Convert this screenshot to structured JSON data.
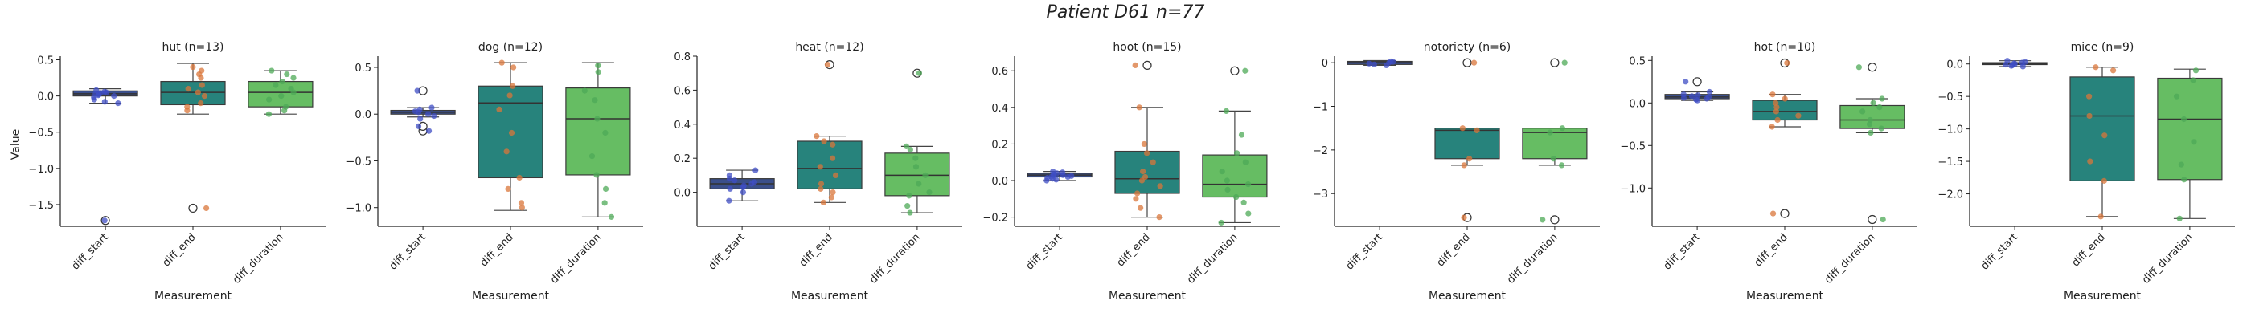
{
  "figure": {
    "title": "Patient D61 n=77",
    "ylabel": "Value",
    "xlabel": "Measurement"
  },
  "colors": {
    "box": [
      "#3b4f8a",
      "#27837c",
      "#66bd63"
    ],
    "points": [
      "#3f4ec4",
      "#d9763a",
      "#4daa57"
    ],
    "median": "#333333",
    "whisker": "#444444"
  },
  "chart_data": [
    {
      "type": "box",
      "title": "hut (n=13)",
      "categories": [
        "diff_start",
        "diff_end",
        "diff_duration"
      ],
      "ylim": [
        -1.8,
        0.55
      ],
      "yticks": [
        0.5,
        0.0,
        -0.5,
        -1.0,
        -1.5
      ],
      "boxes": [
        {
          "q1": 0.0,
          "median": 0.03,
          "q3": 0.07,
          "wlow": -0.1,
          "whigh": 0.1,
          "outliers": [
            -1.72
          ]
        },
        {
          "q1": -0.12,
          "median": 0.05,
          "q3": 0.2,
          "wlow": -0.25,
          "whigh": 0.45,
          "outliers": [
            -1.55
          ]
        },
        {
          "q1": -0.15,
          "median": 0.05,
          "q3": 0.2,
          "wlow": -0.25,
          "whigh": 0.35,
          "outliers": []
        }
      ],
      "points": [
        [
          0.08,
          0.06,
          0.04,
          0.02,
          0.0,
          -0.02,
          -0.05,
          -0.08,
          -0.1,
          0.05,
          0.03,
          0.01,
          -1.72
        ],
        [
          0.4,
          0.35,
          0.3,
          0.25,
          0.15,
          0.1,
          0.05,
          0.0,
          -0.1,
          -0.15,
          -0.2,
          -1.55
        ],
        [
          0.35,
          0.3,
          0.25,
          0.2,
          0.15,
          0.1,
          0.05,
          0.0,
          -0.05,
          -0.15,
          -0.2,
          -0.25
        ]
      ]
    },
    {
      "type": "box",
      "title": "dog (n=12)",
      "categories": [
        "diff_start",
        "diff_end",
        "diff_duration"
      ],
      "ylim": [
        -1.2,
        0.62
      ],
      "yticks": [
        0.5,
        0.0,
        -0.5,
        -1.0
      ],
      "boxes": [
        {
          "q1": 0.0,
          "median": 0.02,
          "q3": 0.04,
          "wlow": -0.03,
          "whigh": 0.07,
          "outliers": [
            0.25,
            -0.18,
            -0.13
          ]
        },
        {
          "q1": -0.68,
          "median": 0.12,
          "q3": 0.3,
          "wlow": -1.03,
          "whigh": 0.55,
          "outliers": []
        },
        {
          "q1": -0.65,
          "median": -0.05,
          "q3": 0.28,
          "wlow": -1.1,
          "whigh": 0.55,
          "outliers": []
        }
      ],
      "points": [
        [
          0.25,
          0.07,
          0.05,
          0.03,
          0.02,
          0.0,
          -0.02,
          -0.05,
          -0.13,
          -0.18
        ],
        [
          0.55,
          0.5,
          0.3,
          0.2,
          0.05,
          -0.2,
          -0.4,
          -0.68,
          -0.8,
          -0.95,
          -1.0
        ],
        [
          0.52,
          0.45,
          0.25,
          0.15,
          -0.05,
          -0.2,
          -0.45,
          -0.65,
          -0.8,
          -0.95,
          -1.1
        ]
      ]
    },
    {
      "type": "box",
      "title": "heat (n=12)",
      "categories": [
        "diff_start",
        "diff_end",
        "diff_duration"
      ],
      "ylim": [
        -0.2,
        0.8
      ],
      "yticks": [
        0.8,
        0.6,
        0.4,
        0.2,
        0.0
      ],
      "boxes": [
        {
          "q1": 0.02,
          "median": 0.05,
          "q3": 0.08,
          "wlow": -0.05,
          "whigh": 0.13,
          "outliers": []
        },
        {
          "q1": 0.02,
          "median": 0.14,
          "q3": 0.3,
          "wlow": -0.06,
          "whigh": 0.33,
          "outliers": [
            0.75
          ]
        },
        {
          "q1": -0.02,
          "median": 0.1,
          "q3": 0.23,
          "wlow": -0.12,
          "whigh": 0.27,
          "outliers": [
            0.7
          ]
        }
      ],
      "points": [
        [
          0.13,
          0.1,
          0.08,
          0.07,
          0.06,
          0.05,
          0.04,
          0.03,
          0.02,
          0.0,
          -0.05
        ],
        [
          0.75,
          0.33,
          0.3,
          0.28,
          0.2,
          0.15,
          0.1,
          0.05,
          0.02,
          0.0,
          -0.03,
          -0.06
        ],
        [
          0.7,
          0.27,
          0.25,
          0.2,
          0.15,
          0.1,
          0.05,
          0.0,
          -0.02,
          -0.08,
          -0.12
        ]
      ]
    },
    {
      "type": "box",
      "title": "hoot (n=15)",
      "categories": [
        "diff_start",
        "diff_end",
        "diff_duration"
      ],
      "ylim": [
        -0.25,
        0.68
      ],
      "yticks": [
        0.6,
        0.4,
        0.2,
        0.0,
        -0.2
      ],
      "boxes": [
        {
          "q1": 0.02,
          "median": 0.03,
          "q3": 0.04,
          "wlow": 0.0,
          "whigh": 0.05,
          "outliers": []
        },
        {
          "q1": -0.07,
          "median": 0.01,
          "q3": 0.16,
          "wlow": -0.2,
          "whigh": 0.4,
          "outliers": [
            0.63
          ]
        },
        {
          "q1": -0.09,
          "median": -0.02,
          "q3": 0.14,
          "wlow": -0.23,
          "whigh": 0.38,
          "outliers": [
            0.6
          ]
        }
      ],
      "points": [
        [
          0.05,
          0.045,
          0.04,
          0.035,
          0.03,
          0.03,
          0.025,
          0.02,
          0.02,
          0.015,
          0.01,
          0.005,
          0.0
        ],
        [
          0.63,
          0.4,
          0.2,
          0.15,
          0.1,
          0.05,
          0.02,
          0.0,
          -0.03,
          -0.07,
          -0.1,
          -0.15,
          -0.2
        ],
        [
          0.6,
          0.38,
          0.25,
          0.15,
          0.1,
          0.05,
          0.0,
          -0.02,
          -0.05,
          -0.09,
          -0.12,
          -0.18,
          -0.23
        ]
      ]
    },
    {
      "type": "box",
      "title": "notoriety (n=6)",
      "categories": [
        "diff_start",
        "diff_end",
        "diff_duration"
      ],
      "ylim": [
        -3.75,
        0.15
      ],
      "yticks": [
        0,
        -1,
        -2,
        -3
      ],
      "boxes": [
        {
          "q1": -0.04,
          "median": 0.0,
          "q3": 0.03,
          "wlow": -0.06,
          "whigh": 0.05,
          "outliers": []
        },
        {
          "q1": -2.2,
          "median": -1.55,
          "q3": -1.5,
          "wlow": -2.35,
          "whigh": -1.5,
          "outliers": [
            0.0,
            -3.55
          ]
        },
        {
          "q1": -2.2,
          "median": -1.6,
          "q3": -1.5,
          "wlow": -2.35,
          "whigh": -1.5,
          "outliers": [
            0.0,
            -3.6
          ]
        }
      ],
      "points": [
        [
          0.03,
          0.02,
          0.0,
          -0.02,
          -0.04,
          -0.06
        ],
        [
          0.0,
          -1.5,
          -1.55,
          -2.2,
          -2.35,
          -3.55
        ],
        [
          0.0,
          -1.5,
          -1.6,
          -2.2,
          -2.35,
          -3.6
        ]
      ]
    },
    {
      "type": "box",
      "title": "hot (n=10)",
      "categories": [
        "diff_start",
        "diff_end",
        "diff_duration"
      ],
      "ylim": [
        -1.45,
        0.55
      ],
      "yticks": [
        0.5,
        0.0,
        -0.5,
        -1.0
      ],
      "boxes": [
        {
          "q1": 0.05,
          "median": 0.07,
          "q3": 0.1,
          "wlow": 0.03,
          "whigh": 0.13,
          "outliers": [
            0.25
          ]
        },
        {
          "q1": -0.2,
          "median": -0.1,
          "q3": 0.03,
          "wlow": -0.28,
          "whigh": 0.1,
          "outliers": [
            0.47,
            -1.3
          ]
        },
        {
          "q1": -0.3,
          "median": -0.2,
          "q3": -0.03,
          "wlow": -0.35,
          "whigh": 0.05,
          "outliers": [
            0.42,
            -1.37
          ]
        }
      ],
      "points": [
        [
          0.25,
          0.13,
          0.1,
          0.09,
          0.08,
          0.07,
          0.06,
          0.05,
          0.04,
          0.03
        ],
        [
          0.47,
          0.1,
          0.05,
          0.0,
          -0.05,
          -0.1,
          -0.15,
          -0.2,
          -0.28,
          -1.3
        ],
        [
          0.42,
          0.05,
          0.0,
          -0.05,
          -0.1,
          -0.2,
          -0.25,
          -0.3,
          -0.35,
          -1.37
        ]
      ]
    },
    {
      "type": "box",
      "title": "mice (n=9)",
      "categories": [
        "diff_start",
        "diff_end",
        "diff_duration"
      ],
      "ylim": [
        -2.5,
        0.12
      ],
      "yticks": [
        0.0,
        -0.5,
        -1.0,
        -1.5,
        -2.0
      ],
      "boxes": [
        {
          "q1": -0.01,
          "median": 0.0,
          "q3": 0.02,
          "wlow": -0.04,
          "whigh": 0.05,
          "outliers": []
        },
        {
          "q1": -1.8,
          "median": -0.8,
          "q3": -0.2,
          "wlow": -2.35,
          "whigh": -0.05,
          "outliers": []
        },
        {
          "q1": -1.78,
          "median": -0.85,
          "q3": -0.22,
          "wlow": -2.38,
          "whigh": -0.08,
          "outliers": []
        }
      ],
      "points": [
        [
          0.05,
          0.03,
          0.02,
          0.01,
          0.0,
          -0.01,
          -0.02,
          -0.03,
          -0.04
        ],
        [
          -0.05,
          -0.1,
          -0.5,
          -0.8,
          -1.1,
          -1.5,
          -1.8,
          -2.35
        ],
        [
          -0.1,
          -0.25,
          -0.5,
          -0.85,
          -1.2,
          -1.55,
          -1.78,
          -2.38
        ]
      ]
    }
  ]
}
